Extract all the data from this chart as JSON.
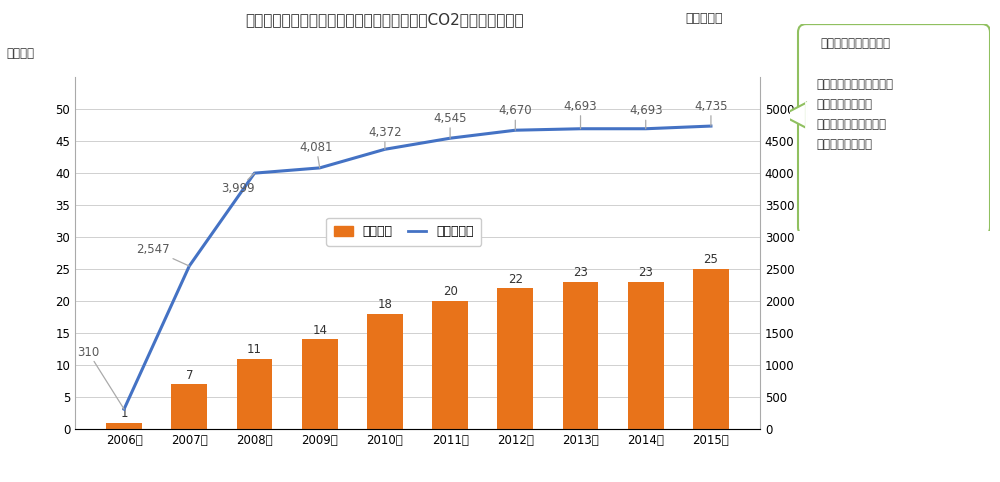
{
  "years": [
    "2006年",
    "2007年",
    "2008年",
    "2009年",
    "2010年",
    "2011年",
    "2012年",
    "2013年",
    "2014年",
    "2015年"
  ],
  "bar_values": [
    1,
    7,
    11,
    14,
    18,
    20,
    22,
    23,
    23,
    25
  ],
  "line_values": [
    310,
    2547,
    3999,
    4081,
    4372,
    4545,
    4670,
    4693,
    4693,
    4735
  ],
  "bar_color": "#E8731A",
  "line_color": "#4472C4",
  "title_main": "【エネルギー多消費型設備の天然ガス化によCO2排出削減効果】",
  "title_unit": "単位：トン",
  "ylabel_left": "単位：件",
  "left_ylim": [
    0,
    55
  ],
  "left_yticks": [
    0,
    5,
    10,
    15,
    20,
    25,
    30,
    35,
    40,
    45,
    50
  ],
  "right_ylim": [
    0,
    5500
  ],
  "right_yticks": [
    0,
    500,
    1000,
    1500,
    2000,
    2500,
    3000,
    3500,
    4000,
    4500,
    5000
  ],
  "legend_bar": "累計件数",
  "legend_line": "累計削減量",
  "line_anno_texts": [
    "310",
    "2,547",
    "3,999",
    "4,081",
    "4,372",
    "4,545",
    "4,670",
    "4,693",
    "4,693",
    "4,735"
  ],
  "callout_title": "２０１７年３月末現在",
  "callout_body": "現在天然ガス化燃料転換\n累計件数　２５件\n年間ＣＯ２排出削減量\n　４，７３５トン",
  "callout_edge_color": "#90C060",
  "text_color": "#333333",
  "ann_color": "#595959",
  "grid_color": "#d0d0d0",
  "background": "#ffffff"
}
